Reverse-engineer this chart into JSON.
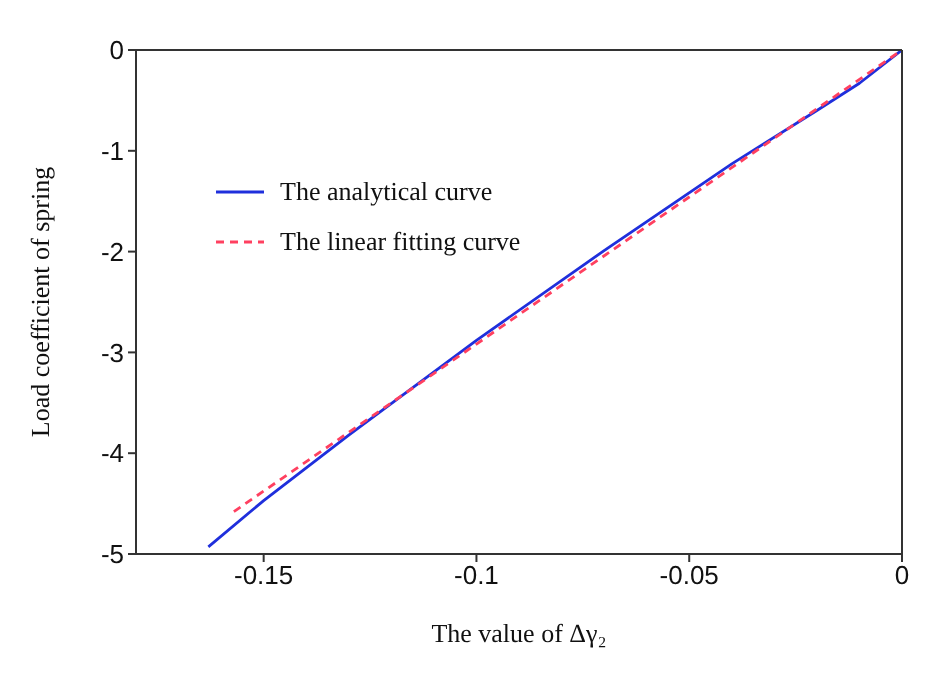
{
  "chart_data": {
    "type": "line",
    "xlabel": "The value of Δγ₂",
    "ylabel": "Load coefficient of spring",
    "xlim": [
      -0.18,
      0
    ],
    "ylim": [
      -5,
      0
    ],
    "xticks": [
      -0.15,
      -0.1,
      -0.05,
      0
    ],
    "yticks": [
      -5,
      -4,
      -3,
      -2,
      -1,
      0
    ],
    "grid": false,
    "legend": "top left",
    "marker": "none",
    "series": [
      {
        "name": "The analytical curve",
        "color": "#1f2fdc",
        "line_style": "solid",
        "x": [
          -0.163,
          -0.15,
          -0.13,
          -0.1,
          -0.07,
          -0.04,
          -0.02,
          -0.01,
          0
        ],
        "values": [
          -4.93,
          -4.47,
          -3.82,
          -2.88,
          -1.99,
          -1.13,
          -0.6,
          -0.33,
          0
        ]
      },
      {
        "name": "The linear fitting curve",
        "color": "#ff4060",
        "line_style": "dashed",
        "x": [
          -0.157,
          0
        ],
        "values": [
          -4.58,
          0
        ]
      }
    ]
  }
}
